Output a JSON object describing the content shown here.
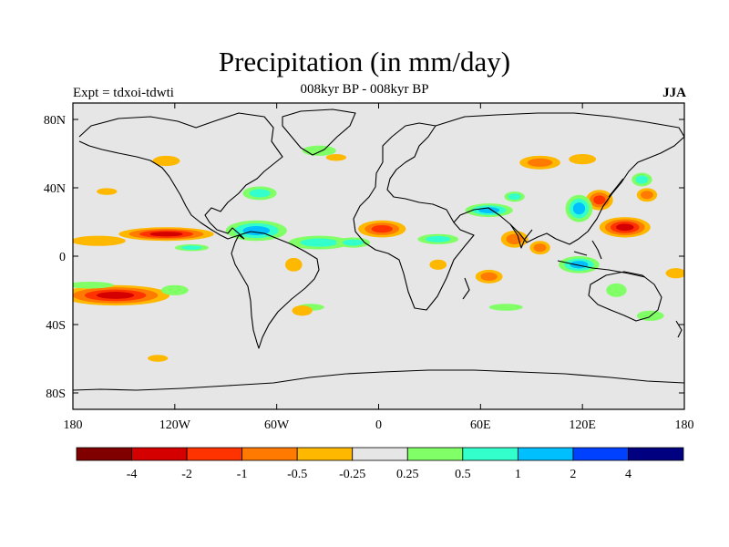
{
  "title": "Precipitation (in mm/day)",
  "subtitle": "008kyr BP - 008kyr BP",
  "left_label": "Expt = tdxoi-tdwti",
  "right_label": "JJA",
  "colorbar": {
    "colors": [
      "#800000",
      "#d40000",
      "#ff3300",
      "#ff7a00",
      "#ffb800",
      "#e6e6e6",
      "#80ff66",
      "#33ffcc",
      "#00bfff",
      "#0040ff",
      "#000080"
    ],
    "labels": [
      "-4",
      "-2",
      "-1",
      "-0.5",
      "-0.25",
      "0.25",
      "0.5",
      "1",
      "2",
      "4"
    ]
  },
  "map": {
    "type": "filled-contour-map",
    "background_color": "#e6e6e6",
    "lon_ticks": [
      "180",
      "120W",
      "60W",
      "0",
      "60E",
      "120E",
      "180"
    ],
    "lat_ticks": [
      "80N",
      "40N",
      "0",
      "40S",
      "80S"
    ],
    "anomalies": [
      {
        "name": "east-pacific-itcz-dry",
        "lon": -125,
        "lat": 13,
        "rx": 28,
        "ry": 4,
        "colors": [
          "#ffb800",
          "#ff7a00",
          "#ff3300",
          "#d40000"
        ]
      },
      {
        "name": "south-pacific-dry",
        "lon": -155,
        "lat": -23,
        "rx": 32,
        "ry": 6,
        "colors": [
          "#ffb800",
          "#ff7a00",
          "#ff3300",
          "#d40000"
        ]
      },
      {
        "name": "central-pacific-dry-band",
        "lon": -165,
        "lat": 9,
        "rx": 16,
        "ry": 3,
        "colors": [
          "#ffb800"
        ]
      },
      {
        "name": "south-pacific-wet-edge",
        "lon": -170,
        "lat": -17,
        "rx": 14,
        "ry": 2,
        "colors": [
          "#80ff66"
        ]
      },
      {
        "name": "caribbean-wet",
        "lon": -72,
        "lat": 15,
        "rx": 18,
        "ry": 6,
        "colors": [
          "#80ff66",
          "#33ffcc",
          "#00bfff"
        ]
      },
      {
        "name": "atlantic-itcz-wet",
        "lon": -35,
        "lat": 8,
        "rx": 18,
        "ry": 4,
        "colors": [
          "#80ff66",
          "#33ffcc"
        ]
      },
      {
        "name": "atlantic-itcz-wet-2",
        "lon": -15,
        "lat": 8,
        "rx": 10,
        "ry": 3,
        "colors": [
          "#80ff66",
          "#33ffcc"
        ]
      },
      {
        "name": "west-africa-dry",
        "lon": 2,
        "lat": 16,
        "rx": 14,
        "ry": 5,
        "colors": [
          "#ffb800",
          "#ff7a00",
          "#ff3300"
        ]
      },
      {
        "name": "east-africa-wet",
        "lon": 35,
        "lat": 10,
        "rx": 12,
        "ry": 3,
        "colors": [
          "#80ff66",
          "#33ffcc"
        ]
      },
      {
        "name": "arabian-sea-wet",
        "lon": 65,
        "lat": 27,
        "rx": 14,
        "ry": 4,
        "colors": [
          "#80ff66",
          "#33ffcc",
          "#00bfff"
        ]
      },
      {
        "name": "india-dry",
        "lon": 80,
        "lat": 10,
        "rx": 8,
        "ry": 5,
        "colors": [
          "#ffb800",
          "#ff7a00"
        ]
      },
      {
        "name": "bay-of-bengal-dry",
        "lon": 95,
        "lat": 5,
        "rx": 6,
        "ry": 4,
        "colors": [
          "#ffb800",
          "#ff7a00"
        ]
      },
      {
        "name": "west-pacific-dry",
        "lon": 145,
        "lat": 17,
        "rx": 15,
        "ry": 6,
        "colors": [
          "#ffb800",
          "#ff7a00",
          "#ff3300",
          "#d40000"
        ]
      },
      {
        "name": "japan-dry",
        "lon": 130,
        "lat": 33,
        "rx": 8,
        "ry": 6,
        "colors": [
          "#ffb800",
          "#ff7a00",
          "#ff3300"
        ]
      },
      {
        "name": "east-china-wet",
        "lon": 118,
        "lat": 28,
        "rx": 8,
        "ry": 8,
        "colors": [
          "#80ff66",
          "#33ffcc",
          "#00bfff"
        ]
      },
      {
        "name": "kuroshio-dry",
        "lon": 158,
        "lat": 36,
        "rx": 6,
        "ry": 4,
        "colors": [
          "#ffb800",
          "#ff7a00"
        ]
      },
      {
        "name": "maritime-continent-wet",
        "lon": 118,
        "lat": -5,
        "rx": 12,
        "ry": 5,
        "colors": [
          "#80ff66",
          "#33ffcc",
          "#00bfff"
        ]
      },
      {
        "name": "indian-ocean-south-dry",
        "lon": 65,
        "lat": -12,
        "rx": 8,
        "ry": 4,
        "colors": [
          "#ffb800",
          "#ff7a00"
        ]
      },
      {
        "name": "south-indian-wet",
        "lon": 75,
        "lat": -30,
        "rx": 10,
        "ry": 2,
        "colors": [
          "#80ff66"
        ]
      },
      {
        "name": "northern-asia-dry",
        "lon": 95,
        "lat": 55,
        "rx": 12,
        "ry": 4,
        "colors": [
          "#ffb800",
          "#ff7a00"
        ]
      },
      {
        "name": "siberia-dry",
        "lon": 120,
        "lat": 57,
        "rx": 8,
        "ry": 3,
        "colors": [
          "#ffb800"
        ]
      },
      {
        "name": "eastern-north-america-wet",
        "lon": -70,
        "lat": 37,
        "rx": 10,
        "ry": 4,
        "colors": [
          "#80ff66",
          "#33ffcc"
        ]
      },
      {
        "name": "greenland-wet",
        "lon": -35,
        "lat": 62,
        "rx": 10,
        "ry": 3,
        "colors": [
          "#80ff66"
        ]
      },
      {
        "name": "alaska-dry",
        "lon": -125,
        "lat": 56,
        "rx": 8,
        "ry": 3,
        "colors": [
          "#ffb800"
        ]
      },
      {
        "name": "brazil-dry",
        "lon": -50,
        "lat": -5,
        "rx": 5,
        "ry": 4,
        "colors": [
          "#ffb800"
        ]
      },
      {
        "name": "south-atlantic-wet",
        "lon": -40,
        "lat": -30,
        "rx": 8,
        "ry": 2,
        "colors": [
          "#80ff66"
        ]
      },
      {
        "name": "south-america-east-dry",
        "lon": -45,
        "lat": -32,
        "rx": 6,
        "ry": 3,
        "colors": [
          "#ffb800"
        ]
      },
      {
        "name": "southern-ocean-dry",
        "lon": -130,
        "lat": -60,
        "rx": 6,
        "ry": 2,
        "colors": [
          "#ffb800"
        ]
      },
      {
        "name": "tropical-pacific-wet",
        "lon": -110,
        "lat": 5,
        "rx": 10,
        "ry": 2,
        "colors": [
          "#80ff66",
          "#33ffcc"
        ]
      },
      {
        "name": "new-zealand-wet",
        "lon": 160,
        "lat": -35,
        "rx": 8,
        "ry": 3,
        "colors": [
          "#80ff66"
        ]
      },
      {
        "name": "pacific-dry-north",
        "lon": -160,
        "lat": 38,
        "rx": 6,
        "ry": 2,
        "colors": [
          "#ffb800"
        ]
      },
      {
        "name": "north-atlantic-dry",
        "lon": -25,
        "lat": 58,
        "rx": 6,
        "ry": 2,
        "colors": [
          "#ffb800"
        ]
      },
      {
        "name": "tibet-wet",
        "lon": 80,
        "lat": 35,
        "rx": 6,
        "ry": 3,
        "colors": [
          "#80ff66",
          "#33ffcc"
        ]
      },
      {
        "name": "central-africa-south-dry",
        "lon": 35,
        "lat": -5,
        "rx": 5,
        "ry": 3,
        "colors": [
          "#ffb800"
        ]
      },
      {
        "name": "australia-east-wet",
        "lon": 140,
        "lat": -20,
        "rx": 6,
        "ry": 4,
        "colors": [
          "#80ff66"
        ]
      },
      {
        "name": "south-east-pacific-wet",
        "lon": -120,
        "lat": -20,
        "rx": 8,
        "ry": 3,
        "colors": [
          "#80ff66"
        ]
      },
      {
        "name": "northwest-pacific-wet",
        "lon": 155,
        "lat": 45,
        "rx": 6,
        "ry": 4,
        "colors": [
          "#80ff66",
          "#33ffcc"
        ]
      },
      {
        "name": "west-pacific-south-dry",
        "lon": 175,
        "lat": -10,
        "rx": 6,
        "ry": 3,
        "colors": [
          "#ffb800"
        ]
      }
    ]
  }
}
